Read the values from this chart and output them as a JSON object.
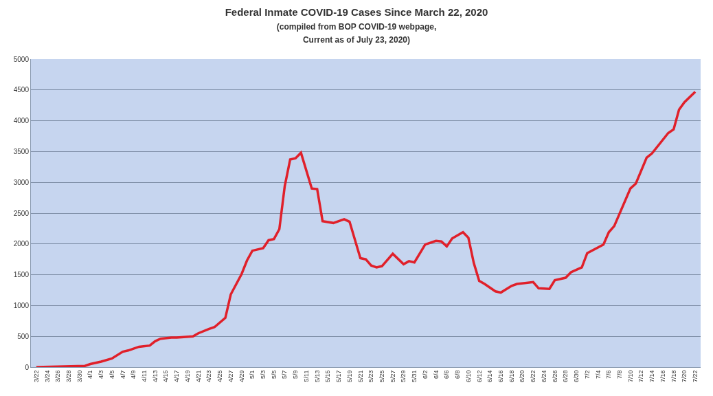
{
  "chart_data": {
    "type": "line",
    "title": "Federal Inmate COVID-19 Cases Since March 22, 2020",
    "subtitle": "(compiled from BOP COVID-19 webpage,\nCurrent as of July 23, 2020)",
    "x": [
      "2020-03-22",
      "2020-03-31",
      "2020-04-01",
      "2020-04-03",
      "2020-04-05",
      "2020-04-07",
      "2020-04-08",
      "2020-04-10",
      "2020-04-12",
      "2020-04-13",
      "2020-04-14",
      "2020-04-16",
      "2020-04-17",
      "2020-04-20",
      "2020-04-21",
      "2020-04-23",
      "2020-04-24",
      "2020-04-26",
      "2020-04-27",
      "2020-04-29",
      "2020-04-30",
      "2020-05-01",
      "2020-05-03",
      "2020-05-04",
      "2020-05-05",
      "2020-05-06",
      "2020-05-07",
      "2020-05-08",
      "2020-05-09",
      "2020-05-10",
      "2020-05-12",
      "2020-05-13",
      "2020-05-14",
      "2020-05-16",
      "2020-05-18",
      "2020-05-19",
      "2020-05-21",
      "2020-05-22",
      "2020-05-23",
      "2020-05-24",
      "2020-05-25",
      "2020-05-27",
      "2020-05-29",
      "2020-05-30",
      "2020-05-31",
      "2020-06-02",
      "2020-06-04",
      "2020-06-05",
      "2020-06-06",
      "2020-06-07",
      "2020-06-09",
      "2020-06-10",
      "2020-06-11",
      "2020-06-12",
      "2020-06-13",
      "2020-06-15",
      "2020-06-16",
      "2020-06-18",
      "2020-06-19",
      "2020-06-22",
      "2020-06-23",
      "2020-06-25",
      "2020-06-26",
      "2020-06-28",
      "2020-06-29",
      "2020-07-01",
      "2020-07-02",
      "2020-07-05",
      "2020-07-06",
      "2020-07-07",
      "2020-07-10",
      "2020-07-11",
      "2020-07-13",
      "2020-07-14",
      "2020-07-17",
      "2020-07-18",
      "2020-07-19",
      "2020-07-20",
      "2020-07-22"
    ],
    "series": [
      {
        "color": "#e0202a",
        "values": [
          0,
          20,
          50,
          90,
          140,
          250,
          270,
          330,
          350,
          420,
          460,
          480,
          480,
          500,
          550,
          620,
          650,
          800,
          1180,
          1510,
          1730,
          1890,
          1930,
          2060,
          2080,
          2240,
          2940,
          3370,
          3390,
          3480,
          2900,
          2890,
          2370,
          2340,
          2400,
          2360,
          1770,
          1750,
          1650,
          1620,
          1640,
          1840,
          1670,
          1720,
          1700,
          1990,
          2050,
          2040,
          1960,
          2090,
          2190,
          2100,
          1690,
          1400,
          1350,
          1230,
          1210,
          1320,
          1350,
          1380,
          1280,
          1270,
          1410,
          1450,
          1540,
          1620,
          1850,
          1990,
          2190,
          2290,
          2900,
          2980,
          3400,
          3470,
          3800,
          3860,
          4180,
          4300,
          4470
        ]
      }
    ],
    "xlim": [
      "2020-03-21",
      "2020-07-23"
    ],
    "xticks": [
      {
        "value": "2020-03-22",
        "label": "3/22"
      },
      {
        "value": "2020-03-24",
        "label": "3/24"
      },
      {
        "value": "2020-03-26",
        "label": "3/26"
      },
      {
        "value": "2020-03-28",
        "label": "3/28"
      },
      {
        "value": "2020-03-30",
        "label": "3/30"
      },
      {
        "value": "2020-04-01",
        "label": "4/1"
      },
      {
        "value": "2020-04-03",
        "label": "4/3"
      },
      {
        "value": "2020-04-05",
        "label": "4/5"
      },
      {
        "value": "2020-04-07",
        "label": "4/7"
      },
      {
        "value": "2020-04-09",
        "label": "4/9"
      },
      {
        "value": "2020-04-11",
        "label": "4/11"
      },
      {
        "value": "2020-04-13",
        "label": "4/13"
      },
      {
        "value": "2020-04-15",
        "label": "4/15"
      },
      {
        "value": "2020-04-17",
        "label": "4/17"
      },
      {
        "value": "2020-04-19",
        "label": "4/19"
      },
      {
        "value": "2020-04-21",
        "label": "4/21"
      },
      {
        "value": "2020-04-23",
        "label": "4/23"
      },
      {
        "value": "2020-04-25",
        "label": "4/25"
      },
      {
        "value": "2020-04-27",
        "label": "4/27"
      },
      {
        "value": "2020-04-29",
        "label": "4/29"
      },
      {
        "value": "2020-05-01",
        "label": "5/1"
      },
      {
        "value": "2020-05-03",
        "label": "5/3"
      },
      {
        "value": "2020-05-05",
        "label": "5/5"
      },
      {
        "value": "2020-05-07",
        "label": "5/7"
      },
      {
        "value": "2020-05-09",
        "label": "5/9"
      },
      {
        "value": "2020-05-11",
        "label": "5/11"
      },
      {
        "value": "2020-05-13",
        "label": "5/13"
      },
      {
        "value": "2020-05-15",
        "label": "5/15"
      },
      {
        "value": "2020-05-17",
        "label": "5/17"
      },
      {
        "value": "2020-05-19",
        "label": "5/19"
      },
      {
        "value": "2020-05-21",
        "label": "5/21"
      },
      {
        "value": "2020-05-23",
        "label": "5/23"
      },
      {
        "value": "2020-05-25",
        "label": "5/25"
      },
      {
        "value": "2020-05-27",
        "label": "5/27"
      },
      {
        "value": "2020-05-29",
        "label": "5/29"
      },
      {
        "value": "2020-05-31",
        "label": "5/31"
      },
      {
        "value": "2020-06-02",
        "label": "6/2"
      },
      {
        "value": "2020-06-04",
        "label": "6/4"
      },
      {
        "value": "2020-06-06",
        "label": "6/6"
      },
      {
        "value": "2020-06-08",
        "label": "6/8"
      },
      {
        "value": "2020-06-10",
        "label": "6/10"
      },
      {
        "value": "2020-06-12",
        "label": "6/12"
      },
      {
        "value": "2020-06-14",
        "label": "6/14"
      },
      {
        "value": "2020-06-16",
        "label": "6/16"
      },
      {
        "value": "2020-06-18",
        "label": "6/18"
      },
      {
        "value": "2020-06-20",
        "label": "6/20"
      },
      {
        "value": "2020-06-22",
        "label": "6/22"
      },
      {
        "value": "2020-06-24",
        "label": "6/24"
      },
      {
        "value": "2020-06-26",
        "label": "6/26"
      },
      {
        "value": "2020-06-28",
        "label": "6/28"
      },
      {
        "value": "2020-06-30",
        "label": "6/30"
      },
      {
        "value": "2020-07-02",
        "label": "7/2"
      },
      {
        "value": "2020-07-04",
        "label": "7/4"
      },
      {
        "value": "2020-07-06",
        "label": "7/6"
      },
      {
        "value": "2020-07-08",
        "label": "7/8"
      },
      {
        "value": "2020-07-10",
        "label": "7/10"
      },
      {
        "value": "2020-07-12",
        "label": "7/12"
      },
      {
        "value": "2020-07-14",
        "label": "7/14"
      },
      {
        "value": "2020-07-16",
        "label": "7/16"
      },
      {
        "value": "2020-07-18",
        "label": "7/18"
      },
      {
        "value": "2020-07-20",
        "label": "7/20"
      },
      {
        "value": "2020-07-22",
        "label": "7/22"
      }
    ],
    "ylim": [
      0,
      5000
    ],
    "yticks": [
      0,
      500,
      1000,
      1500,
      2000,
      2500,
      3000,
      3500,
      4000,
      4500,
      5000
    ],
    "grid": "y",
    "marker": "none",
    "line_style": "solid"
  }
}
